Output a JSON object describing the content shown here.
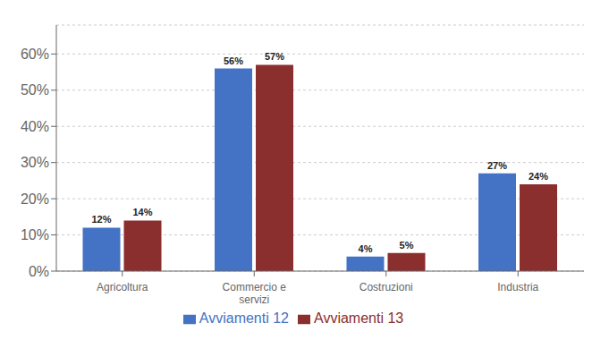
{
  "chart_data": {
    "type": "bar",
    "categories": [
      "Agricoltura",
      "Commercio e\nservizi",
      "Costruzioni",
      "Industria"
    ],
    "series": [
      {
        "name": "Avviamenti 12",
        "color": "#4472C4",
        "values": [
          12,
          56,
          4,
          27
        ],
        "value_labels": [
          "12%",
          "56%",
          "4%",
          "27%"
        ]
      },
      {
        "name": "Avviamenti 13",
        "color": "#8B2E2E",
        "values": [
          14,
          57,
          5,
          24
        ],
        "value_labels": [
          "14%",
          "57%",
          "5%",
          "24%"
        ]
      }
    ],
    "ylim": [
      0,
      68
    ],
    "yticks": [
      {
        "value": 0,
        "label": "0%"
      },
      {
        "value": 10,
        "label": "10%"
      },
      {
        "value": 20,
        "label": "20%"
      },
      {
        "value": 30,
        "label": "30%"
      },
      {
        "value": 40,
        "label": "40%"
      },
      {
        "value": 50,
        "label": "50%"
      },
      {
        "value": 60,
        "label": "60%"
      }
    ],
    "grid": true,
    "legend": "bottom",
    "data_labels": true
  }
}
